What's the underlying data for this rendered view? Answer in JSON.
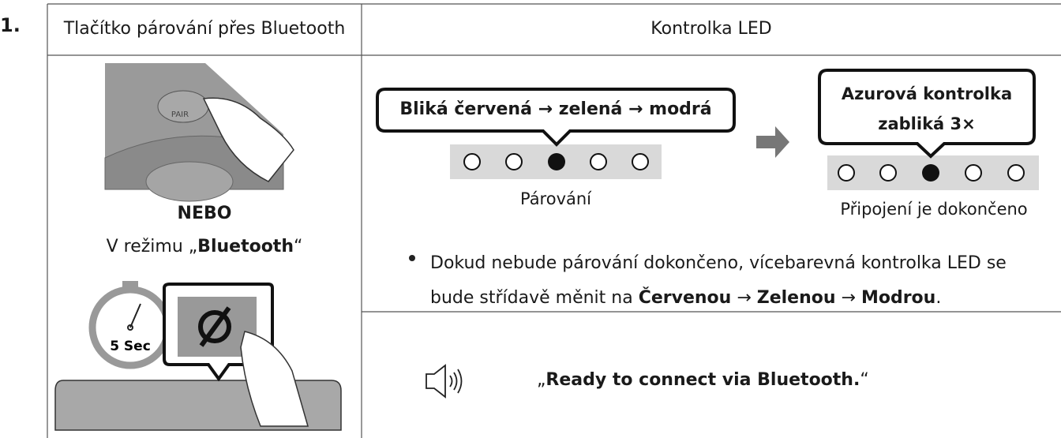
{
  "step": "1.",
  "header": {
    "left": "Tlačítko párování přes Bluetooth",
    "right": "Kontrolka LED"
  },
  "left": {
    "pair_label": "PAIR",
    "or": "NEBO",
    "mode": [
      "V režimu „",
      "Bluetooth",
      "“"
    ],
    "timer": "5 Sec"
  },
  "led": {
    "pairing": {
      "callout": "Bliká červená → zelená → modrá",
      "label": "Párování"
    },
    "connected": {
      "callout": [
        "Azurová kontrolka",
        "zabliká 3×"
      ],
      "label": "Připojení je dokončeno"
    }
  },
  "note": [
    "Dokud nebude párování dokončeno, vícebarevná kontrolka LED se bude střídavě měnit na ",
    "Červenou",
    " → ",
    "Zelenou",
    " → ",
    "Modrou",
    "."
  ],
  "voice": [
    "„",
    "Ready to connect via Bluetooth.",
    "“"
  ]
}
